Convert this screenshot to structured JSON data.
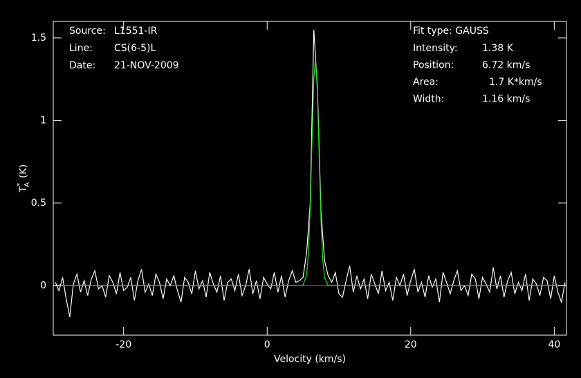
{
  "chart_data": {
    "type": "line",
    "xlabel": "Velocity (km/s)",
    "ylabel": {
      "base": "T",
      "sub": "A",
      "sup": "*",
      "unit": "(K)"
    },
    "xlim": [
      -29.8,
      41.7
    ],
    "ylim": [
      -0.3,
      1.6
    ],
    "xticks": [
      -20,
      0,
      20,
      40
    ],
    "yticks": [
      0,
      0.5,
      1,
      1.5
    ],
    "annotations_left": [
      {
        "label": "Source:",
        "value": "L1551-IR"
      },
      {
        "label": "Line:",
        "value": "CS(6-5)L"
      },
      {
        "label": "Date:",
        "value": "21-NOV-2009"
      }
    ],
    "fit_title": "Fit type: GAUSS",
    "annotations_right": [
      {
        "label": "Intensity:",
        "value": "1.38 K"
      },
      {
        "label": "Position:",
        "value": "6.72 km/s"
      },
      {
        "label": "Area:",
        "value": "1.7 K*km/s"
      },
      {
        "label": "Width:",
        "value": "1.16 km/s"
      }
    ],
    "series": [
      {
        "color": "#ff2020",
        "x": [
          4.8,
          9.6
        ],
        "values": [
          0,
          0
        ]
      },
      {
        "color": "#ffffff",
        "x": [
          -29.5,
          -29,
          -28.5,
          -28,
          -27.5,
          -27,
          -26.5,
          -26,
          -25.5,
          -25,
          -24.5,
          -24,
          -23.5,
          -23,
          -22.5,
          -22,
          -21.5,
          -21,
          -20.5,
          -20,
          -19.5,
          -19,
          -18.5,
          -18,
          -17.5,
          -17,
          -16.5,
          -16,
          -15.5,
          -15,
          -14.5,
          -14,
          -13.5,
          -13,
          -12.5,
          -12,
          -11.5,
          -11,
          -10.5,
          -10,
          -9.5,
          -9,
          -8.5,
          -8,
          -7.5,
          -7,
          -6.5,
          -6,
          -5.5,
          -5,
          -4.5,
          -4,
          -3.5,
          -3,
          -2.5,
          -2,
          -1.5,
          -1,
          -0.5,
          0,
          0.5,
          1,
          1.5,
          2,
          2.5,
          3,
          3.5,
          4,
          4.5,
          5,
          5.5,
          6,
          6.5,
          7,
          7.5,
          8,
          8.5,
          9,
          9.5,
          10,
          10.5,
          11,
          11.5,
          12,
          12.5,
          13,
          13.5,
          14,
          14.5,
          15,
          15.5,
          16,
          16.5,
          17,
          17.5,
          18,
          18.5,
          19,
          19.5,
          20,
          20.5,
          21,
          21.5,
          22,
          22.5,
          23,
          23.5,
          24,
          24.5,
          25,
          25.5,
          26,
          26.5,
          27,
          27.5,
          28,
          28.5,
          29,
          29.5,
          30,
          30.5,
          31,
          31.5,
          32,
          32.5,
          33,
          33.5,
          34,
          34.5,
          35,
          35.5,
          36,
          36.5,
          37,
          37.5,
          38,
          38.5,
          39,
          39.5,
          40,
          40.5,
          41,
          41.5
        ],
        "values": [
          0.02,
          -0.03,
          0.05,
          -0.08,
          -0.19,
          0.01,
          0.07,
          -0.04,
          0.03,
          -0.06,
          0.04,
          0.09,
          -0.02,
          0.0,
          -0.07,
          0.06,
          0.02,
          -0.05,
          0.08,
          -0.03,
          -0.01,
          0.05,
          -0.09,
          0.03,
          0.1,
          -0.04,
          0.01,
          -0.06,
          0.07,
          0.02,
          -0.08,
          0.04,
          0.0,
          0.06,
          -0.03,
          -0.1,
          0.05,
          0.02,
          -0.05,
          0.09,
          -0.02,
          0.03,
          -0.07,
          0.08,
          0.01,
          -0.04,
          0.06,
          -0.09,
          0.02,
          0.04,
          -0.03,
          0.07,
          -0.06,
          0.0,
          0.1,
          -0.05,
          0.03,
          -0.08,
          0.05,
          0.01,
          -0.02,
          0.08,
          -0.04,
          0.06,
          -0.07,
          0.03,
          0.09,
          0.02,
          0.03,
          0.05,
          0.2,
          0.5,
          1.55,
          1.2,
          0.45,
          0.15,
          0.06,
          0.02,
          0.08,
          -0.05,
          -0.07,
          0.03,
          0.12,
          -0.04,
          0.06,
          -0.02,
          0.04,
          -0.08,
          0.07,
          0.01,
          -0.05,
          0.09,
          -0.03,
          0.02,
          -0.09,
          0.05,
          0.0,
          0.07,
          -0.06,
          0.03,
          0.1,
          -0.04,
          0.02,
          -0.07,
          0.06,
          -0.01,
          0.04,
          -0.1,
          0.08,
          0.02,
          -0.05,
          0.03,
          0.09,
          -0.03,
          0.0,
          -0.06,
          0.07,
          0.04,
          -0.08,
          0.05,
          0.01,
          -0.04,
          0.11,
          -0.02,
          0.06,
          -0.07,
          0.03,
          0.08,
          -0.05,
          0.02,
          -0.03,
          0.07,
          -0.09,
          0.04,
          0.01,
          -0.06,
          0.05,
          0.03,
          -0.08,
          0.06,
          -0.04,
          -0.1,
          0.02
        ]
      },
      {
        "color": "#20e020",
        "x": [
          -29.8,
          4,
          5,
          5.5,
          5.75,
          6,
          6.25,
          6.5,
          6.72,
          7,
          7.25,
          7.5,
          7.75,
          8,
          8.5,
          9.5,
          41.7
        ],
        "values": [
          0,
          0,
          0.003,
          0.064,
          0.198,
          0.474,
          0.875,
          1.249,
          1.38,
          1.174,
          0.773,
          0.394,
          0.155,
          0.047,
          0.002,
          0,
          0
        ]
      }
    ]
  }
}
